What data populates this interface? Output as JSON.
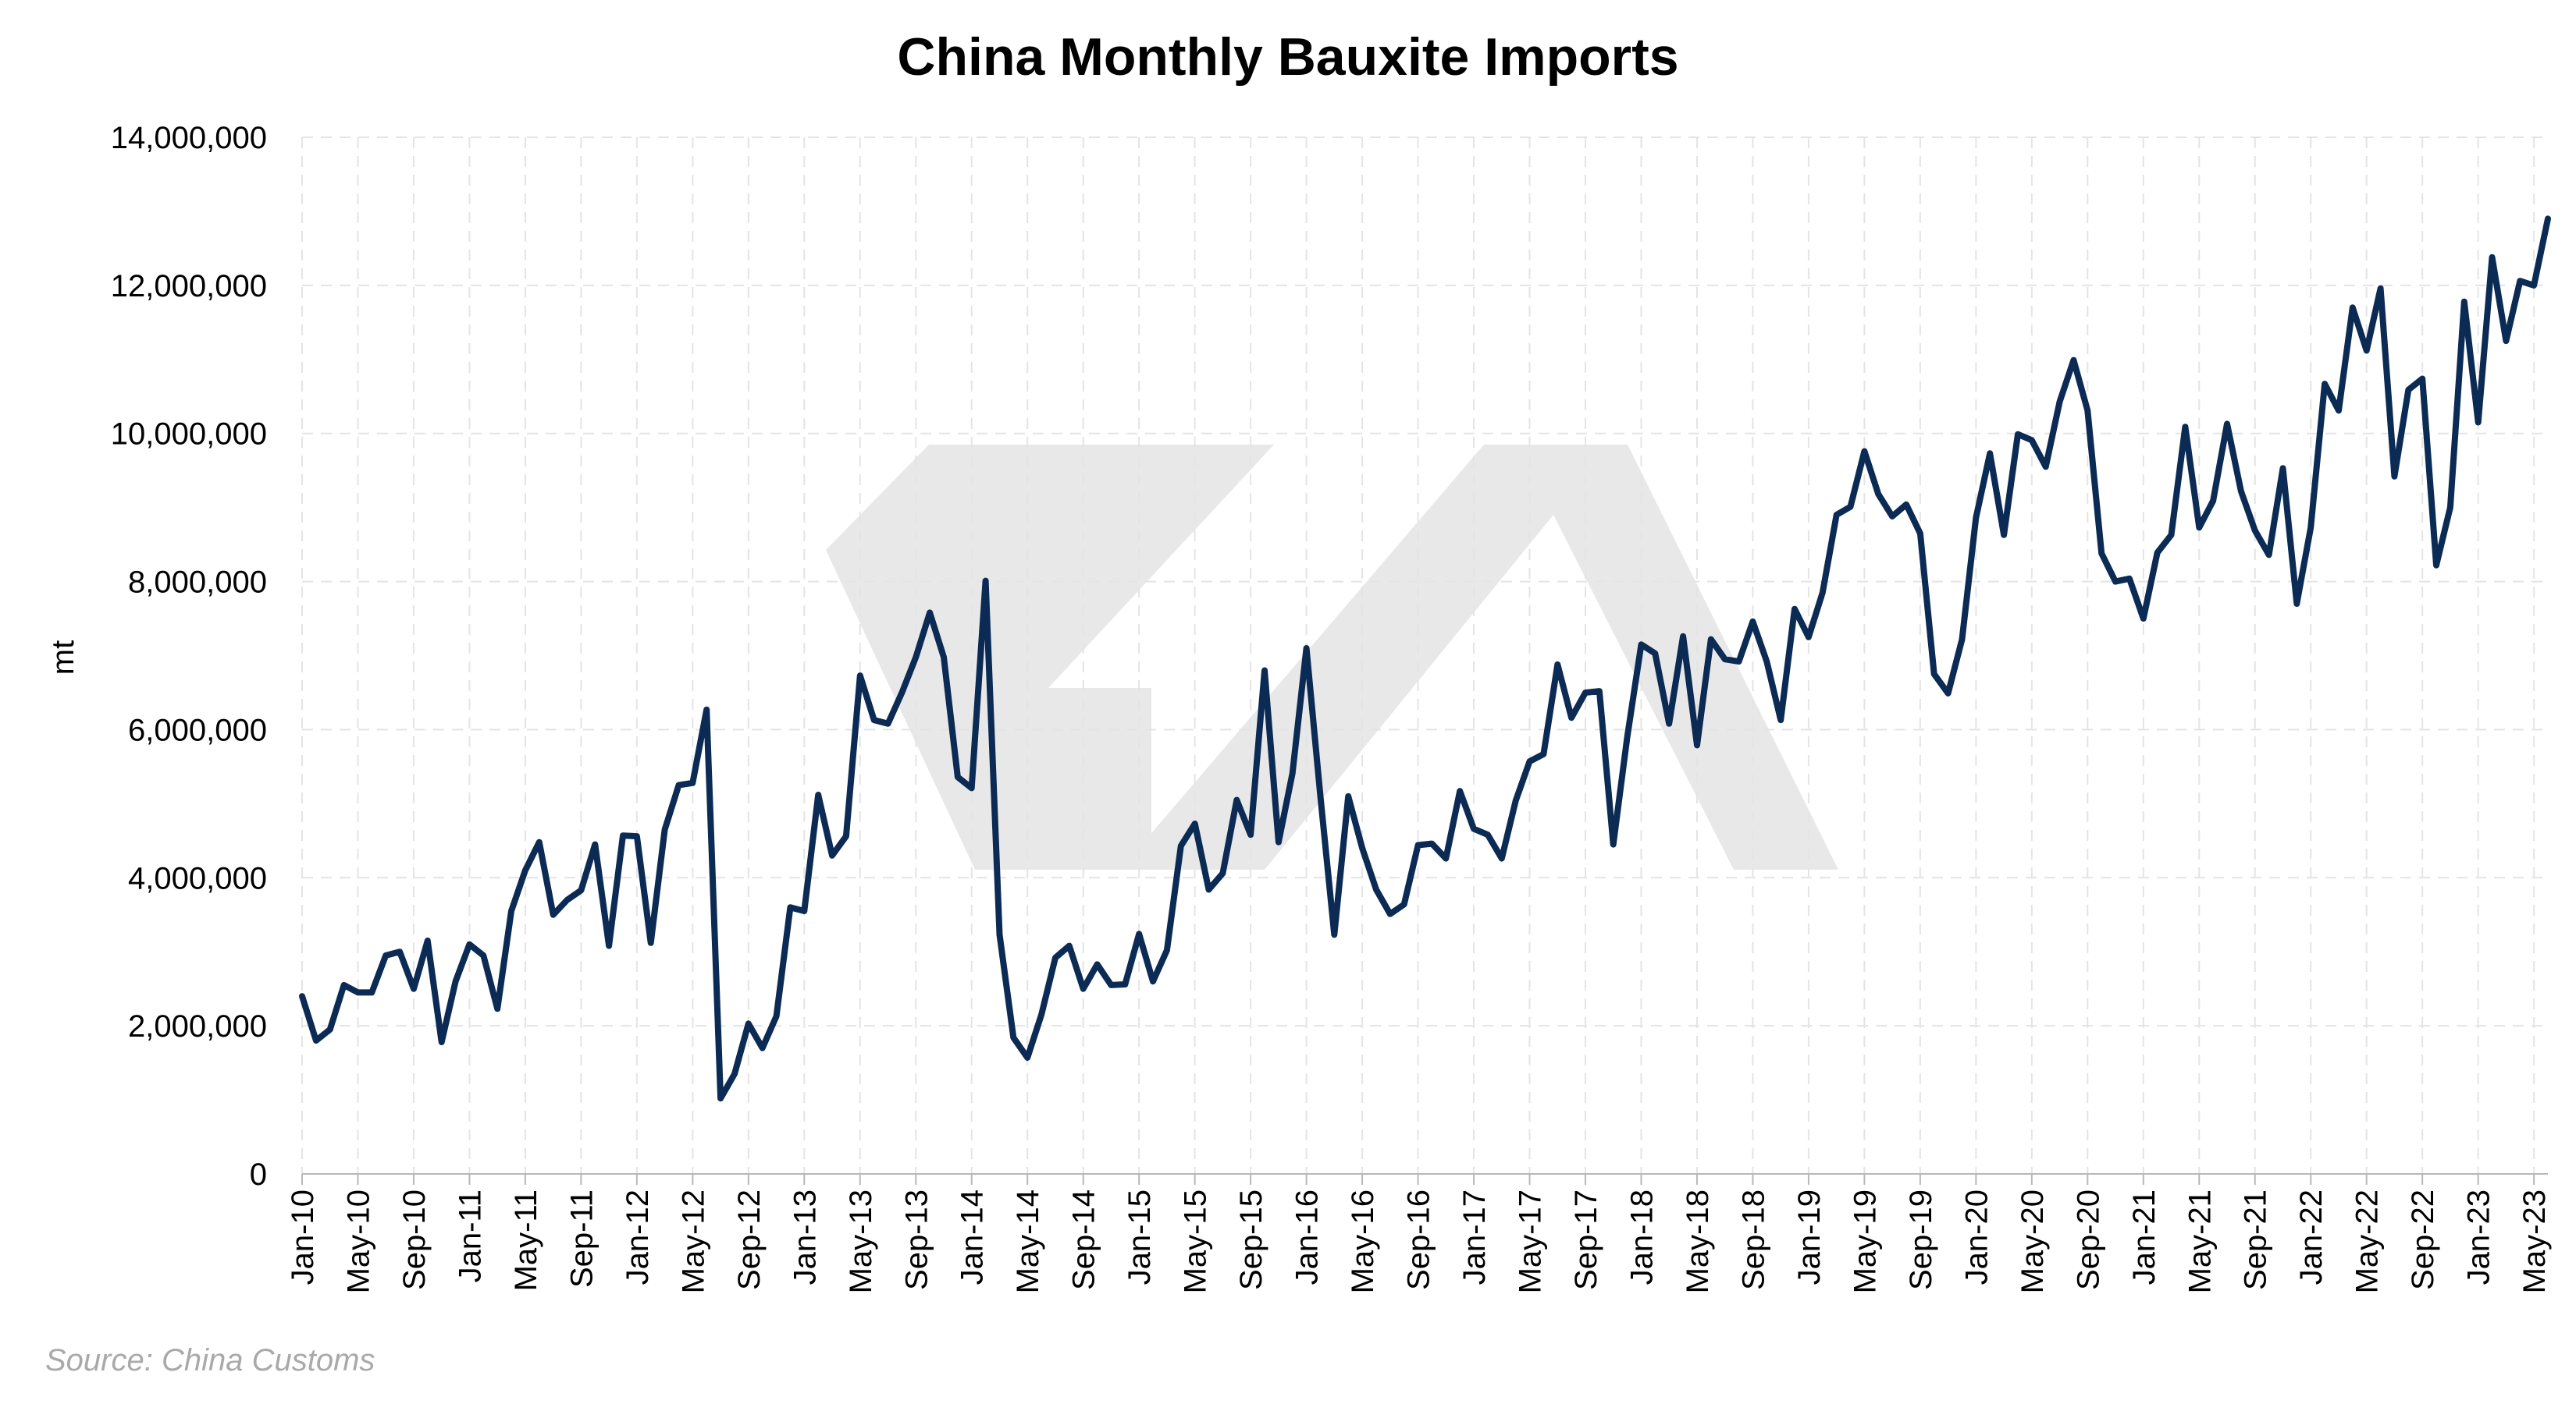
{
  "colors": {
    "line": "#0b2b55",
    "grid": "#e4e4e4",
    "axis": "#b8b8b8",
    "text": "#000000",
    "watermark": "#e8e8e8",
    "source": "#a9a9a9"
  },
  "source": "Source: China Customs",
  "watermark_icon": "company-logo-watermark-icon",
  "chart_data": {
    "type": "line",
    "title": "China Monthly Bauxite Imports",
    "xlabel": "",
    "ylabel": "mt",
    "ylim": [
      0,
      14000000
    ],
    "yticks": [
      0,
      2000000,
      4000000,
      6000000,
      8000000,
      10000000,
      12000000,
      14000000
    ],
    "ytick_labels": [
      "0",
      "2,000,000",
      "4,000,000",
      "6,000,000",
      "8,000,000",
      "10,000,000",
      "12,000,000",
      "14,000,000"
    ],
    "x_tick_labels": [
      "Jan-10",
      "May-10",
      "Sep-10",
      "Jan-11",
      "May-11",
      "Sep-11",
      "Jan-12",
      "May-12",
      "Sep-12",
      "Jan-13",
      "May-13",
      "Sep-13",
      "Jan-14",
      "May-14",
      "Sep-14",
      "Jan-15",
      "May-15",
      "Sep-15",
      "Jan-16",
      "May-16",
      "Sep-16",
      "Jan-17",
      "May-17",
      "Sep-17",
      "Jan-18",
      "May-18",
      "Sep-18",
      "Jan-19",
      "May-19",
      "Sep-19",
      "Jan-20",
      "May-20",
      "Sep-20",
      "Jan-21",
      "May-21",
      "Sep-21",
      "Jan-22",
      "May-22",
      "Sep-22",
      "Jan-23",
      "May-23"
    ],
    "grid": true,
    "x_start": "Jan-10",
    "x_end": "May-23",
    "series": [
      {
        "values": [
          2400000,
          1800000,
          1950000,
          2550000,
          2450000,
          2450000,
          2950000,
          3000000,
          2500000,
          3150000,
          1780000,
          2600000,
          3100000,
          2950000,
          2230000,
          3550000,
          4100000,
          4480000,
          3500000,
          3700000,
          3830000,
          4450000,
          3080000,
          4570000,
          4560000,
          3120000,
          4650000,
          5250000,
          5280000,
          6270000,
          1020000,
          1350000,
          2030000,
          1700000,
          2130000,
          3600000,
          3550000,
          5120000,
          4300000,
          4560000,
          6730000,
          6130000,
          6080000,
          6500000,
          6980000,
          7580000,
          6980000,
          5360000,
          5210000,
          8010000,
          3230000,
          1840000,
          1570000,
          2150000,
          2920000,
          3080000,
          2500000,
          2830000,
          2550000,
          2560000,
          3240000,
          2600000,
          3020000,
          4430000,
          4730000,
          3840000,
          4060000,
          5050000,
          4580000,
          6800000,
          4480000,
          5410000,
          7100000,
          5100000,
          3230000,
          5100000,
          4400000,
          3840000,
          3510000,
          3640000,
          4440000,
          4460000,
          4260000,
          5170000,
          4660000,
          4580000,
          4260000,
          5040000,
          5570000,
          5670000,
          6880000,
          6160000,
          6500000,
          6520000,
          4450000,
          5900000,
          7150000,
          7030000,
          6080000,
          7260000,
          5790000,
          7220000,
          6950000,
          6920000,
          7460000,
          6920000,
          6130000,
          7630000,
          7250000,
          7850000,
          8900000,
          9010000,
          9760000,
          9180000,
          8880000,
          9040000,
          8650000,
          6750000,
          6490000,
          7220000,
          8860000,
          9730000,
          8630000,
          9990000,
          9910000,
          9550000,
          10430000,
          10990000,
          10310000,
          8380000,
          8000000,
          8040000,
          7500000,
          8390000,
          8630000,
          10090000,
          8730000,
          9090000,
          10130000,
          9220000,
          8690000,
          8360000,
          9530000,
          7700000,
          8730000,
          10670000,
          10310000,
          11700000,
          11120000,
          11960000,
          9420000,
          10590000,
          10740000,
          8220000,
          9000000,
          11780000,
          10150000,
          12380000,
          11250000,
          12060000,
          12000000,
          12900000
        ]
      }
    ]
  }
}
